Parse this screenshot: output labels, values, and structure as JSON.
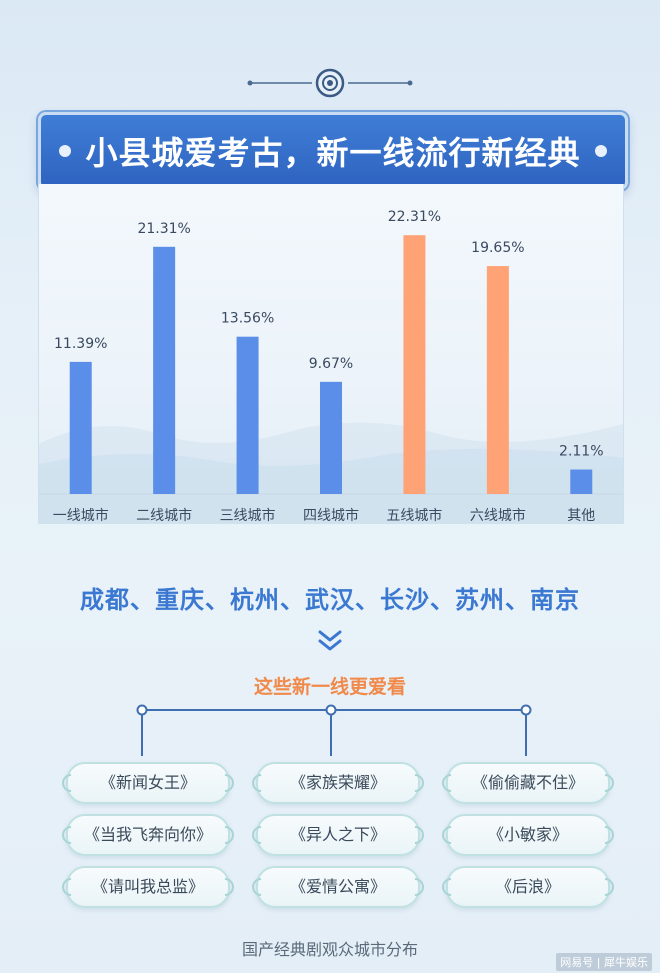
{
  "title": "小县城爱考古，新一线流行新经典",
  "chart_data": {
    "type": "bar",
    "categories": [
      "一线城市",
      "二线城市",
      "三线城市",
      "四线城市",
      "五线城市",
      "六线城市",
      "其他"
    ],
    "values": [
      11.39,
      21.31,
      13.56,
      9.67,
      22.31,
      19.65,
      2.11
    ],
    "value_labels": [
      "11.39%",
      "21.31%",
      "13.56%",
      "9.67%",
      "22.31%",
      "19.65%",
      "2.11%"
    ],
    "highlight": [
      false,
      false,
      false,
      false,
      true,
      true,
      false
    ],
    "ylim": [
      0,
      25
    ],
    "unit": "%",
    "colors": {
      "default": "#5a8ee8",
      "highlight": "#ffa276"
    },
    "grid": false,
    "legend": "none"
  },
  "cities_line": "成都、重庆、杭州、武汉、长沙、苏州、南京",
  "subtitle": "这些新一线更爱看",
  "shows": [
    "《新闻女王》",
    "《家族荣耀》",
    "《偷偷藏不住》",
    "《当我飞奔向你》",
    "《异人之下》",
    "《小敏家》",
    "《请叫我总监》",
    "《爱情公寓》",
    "《后浪》"
  ],
  "footer": "国产经典剧观众城市分布",
  "watermark": "网易号 | 犀牛娱乐",
  "icons": {
    "ornament": "eye-medallion-icon",
    "chevrons": "double-chevron-down-icon"
  }
}
